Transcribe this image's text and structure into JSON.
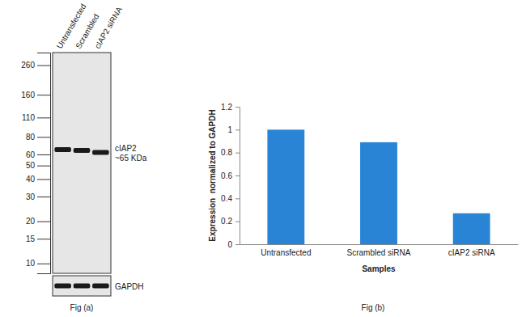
{
  "chart_data": [
    {
      "type": "western_blot",
      "title": "Fig (a)",
      "categories": [
        "Untransfected",
        "Scrambled",
        "cIAP2 siRNA"
      ],
      "log": "y",
      "ylim": [
        8.5,
        320
      ],
      "yticks": [
        260,
        160,
        110,
        80,
        60,
        50,
        40,
        30,
        20,
        15,
        10
      ],
      "series": [
        {
          "name": "cIAP2",
          "label": "~65 KDa",
          "values": [
            65,
            64,
            62
          ]
        }
      ],
      "loading_control": "GAPDH"
    },
    {
      "type": "bar",
      "title": "Fig (b)",
      "categories": [
        "Untransfected",
        "Scrambled siRNA",
        "cIAP2 siRNA"
      ],
      "values": [
        1,
        0.89,
        0.27
      ],
      "color": "#2a84d6",
      "ylim": [
        0,
        1.2
      ],
      "yticks": [
        0,
        0.2,
        0.4,
        0.6,
        0.8,
        1,
        1.2
      ],
      "x_label": "Samples",
      "y_label": "Expression  normalized to GAPDH",
      "grid": false
    }
  ]
}
